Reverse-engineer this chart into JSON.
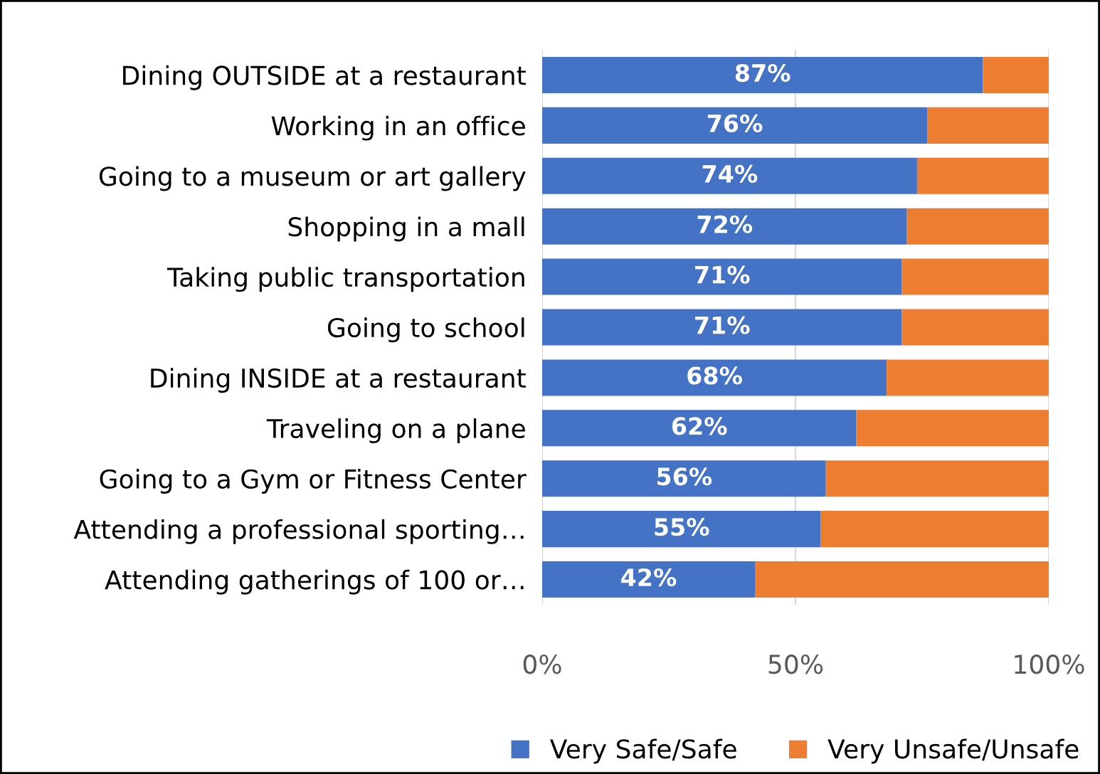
{
  "chart_data": {
    "type": "bar",
    "orientation": "horizontal",
    "stacked": true,
    "categories": [
      "Dining OUTSIDE at a restaurant",
      "Working in an office",
      "Going to a museum or art gallery",
      "Shopping in a mall",
      "Taking public transportation",
      "Going to school",
      "Dining INSIDE at a restaurant",
      "Traveling on a plane",
      "Going to a Gym or Fitness Center",
      "Attending a professional sporting…",
      "Attending gatherings of 100 or…"
    ],
    "series": [
      {
        "name": "Very Safe/Safe",
        "color": "#4472c4",
        "values": [
          87,
          76,
          74,
          72,
          71,
          71,
          68,
          62,
          56,
          55,
          42
        ],
        "value_labels": [
          "87%",
          "76%",
          "74%",
          "72%",
          "71%",
          "71%",
          "68%",
          "62%",
          "56%",
          "55%",
          "42%"
        ]
      },
      {
        "name": "Very Unsafe/Unsafe",
        "color": "#ed7d31",
        "values": [
          13,
          24,
          26,
          28,
          29,
          29,
          32,
          38,
          44,
          45,
          58
        ]
      }
    ],
    "xlim": [
      0,
      100
    ],
    "xticks": [
      {
        "value": 0,
        "label": "0%"
      },
      {
        "value": 50,
        "label": "50%"
      },
      {
        "value": 100,
        "label": "100%"
      }
    ],
    "grid": "x",
    "legend": "bottom"
  }
}
